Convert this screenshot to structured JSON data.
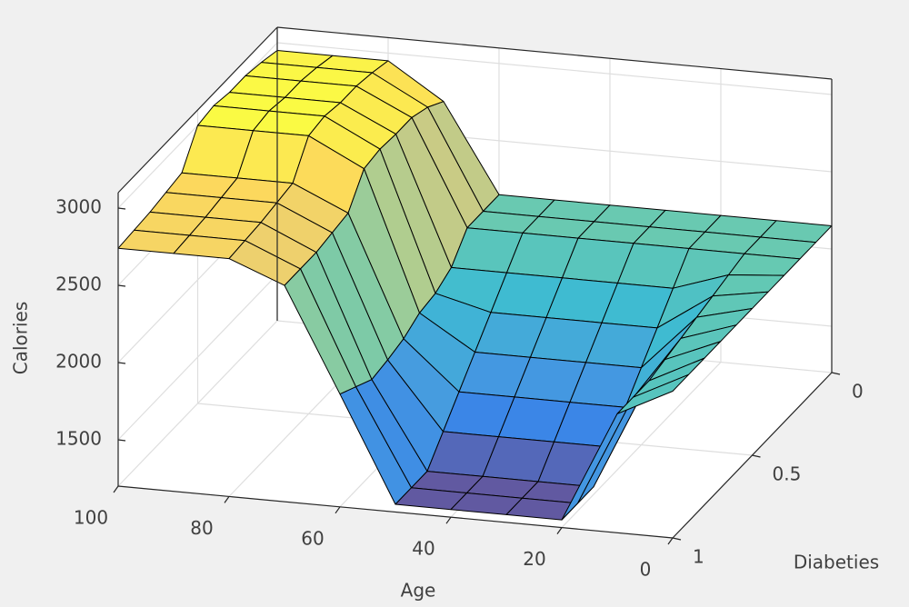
{
  "chart_data": {
    "type": "surface",
    "xlabel": "Age",
    "ylabel": "Diabeties",
    "zlabel": "Calories",
    "x": [
      0,
      10,
      20,
      30,
      40,
      50,
      60,
      70,
      80,
      90,
      100
    ],
    "y": [
      0,
      0.1,
      0.2,
      0.3,
      0.4,
      0.5,
      0.6,
      0.7,
      0.8,
      0.9,
      1
    ],
    "z": [
      [
        2150,
        2150,
        2150,
        2150,
        2150,
        2150,
        2150,
        2720,
        2950,
        2950,
        2950
      ],
      [
        2150,
        2150,
        2150,
        2150,
        2150,
        2150,
        2150,
        2790,
        2980,
        2980,
        2980
      ],
      [
        2150,
        2150,
        2150,
        2150,
        2150,
        2150,
        2150,
        2830,
        3000,
        3000,
        3000
      ],
      [
        2150,
        2120,
        2000,
        2000,
        2000,
        2000,
        2000,
        2830,
        3000,
        3000,
        3000
      ],
      [
        2150,
        2090,
        1850,
        1850,
        1850,
        1850,
        1940,
        2840,
        3020,
        3020,
        3020
      ],
      [
        2150,
        2060,
        1700,
        1700,
        1700,
        1700,
        1920,
        2820,
        3000,
        3000,
        3000
      ],
      [
        2150,
        2030,
        1550,
        1550,
        1550,
        1550,
        1860,
        2640,
        2800,
        2800,
        2800
      ],
      [
        2150,
        2000,
        1400,
        1400,
        1400,
        1400,
        1830,
        2620,
        2780,
        2780,
        2780
      ],
      [
        2150,
        1970,
        1250,
        1250,
        1250,
        1250,
        1810,
        2600,
        2760,
        2760,
        2760
      ],
      [
        2150,
        1970,
        1250,
        1250,
        1250,
        1250,
        1870,
        2600,
        2750,
        2750,
        2750
      ],
      [
        2150,
        1970,
        1250,
        1250,
        1250,
        1250,
        1930,
        2600,
        2740,
        2740,
        2740
      ]
    ],
    "xlim": [
      0,
      100
    ],
    "ylim": [
      0,
      1
    ],
    "zlim": [
      1200,
      3100
    ],
    "xticks": [
      0,
      20,
      40,
      60,
      80,
      100
    ],
    "yticks": [
      0,
      0.5,
      1
    ],
    "zticks": [
      1500,
      2000,
      2500,
      3000
    ],
    "grid": true,
    "colormap": "parula",
    "edgecolor": "#000000"
  }
}
